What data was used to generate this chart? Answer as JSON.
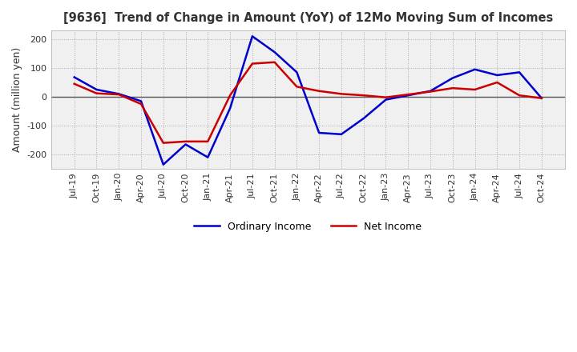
{
  "title": "[9636]  Trend of Change in Amount (YoY) of 12Mo Moving Sum of Incomes",
  "ylabel": "Amount (million yen)",
  "ylim": [
    -250,
    230
  ],
  "yticks": [
    -200,
    -100,
    0,
    100,
    200
  ],
  "background_color": "#ffffff",
  "plot_bg_color": "#f0f0f0",
  "grid_color": "#aaaaaa",
  "zero_line_color": "#555555",
  "ordinary_income_color": "#0000cc",
  "net_income_color": "#cc0000",
  "x_labels": [
    "Jul-19",
    "Oct-19",
    "Jan-20",
    "Apr-20",
    "Jul-20",
    "Oct-20",
    "Jan-21",
    "Apr-21",
    "Jul-21",
    "Oct-21",
    "Jan-22",
    "Apr-22",
    "Jul-22",
    "Oct-22",
    "Jan-23",
    "Apr-23",
    "Jul-23",
    "Oct-23",
    "Jan-24",
    "Apr-24",
    "Jul-24",
    "Oct-24"
  ],
  "ordinary_income": [
    68,
    25,
    10,
    -15,
    -235,
    -165,
    -210,
    -40,
    210,
    155,
    85,
    -125,
    -130,
    -75,
    -10,
    5,
    20,
    65,
    95,
    75,
    85,
    -5
  ],
  "net_income": [
    45,
    12,
    8,
    -25,
    -160,
    -155,
    -155,
    5,
    115,
    120,
    35,
    20,
    10,
    5,
    -2,
    8,
    18,
    30,
    25,
    50,
    5,
    -5
  ]
}
